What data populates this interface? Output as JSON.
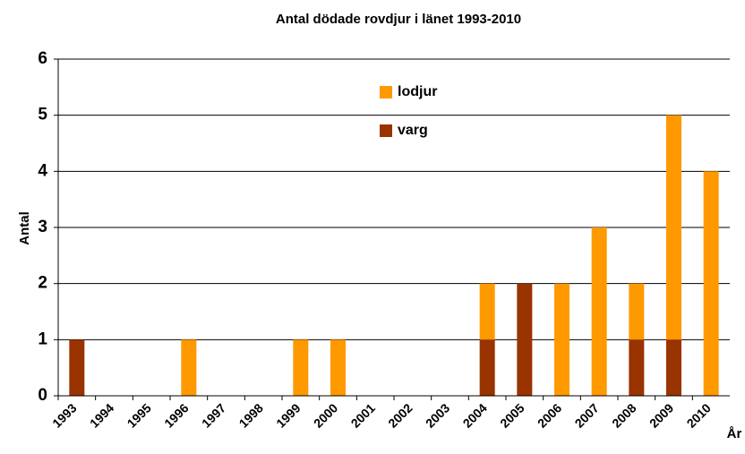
{
  "chart_data": {
    "type": "bar",
    "stacked": true,
    "title": "Antal dödade rovdjur i länet 1993-2010",
    "y_label": "Antal",
    "x_label": "År",
    "categories": [
      "1993",
      "1994",
      "1995",
      "1996",
      "1997",
      "1998",
      "1999",
      "2000",
      "2001",
      "2002",
      "2003",
      "2004",
      "2005",
      "2006",
      "2007",
      "2008",
      "2009",
      "2010"
    ],
    "series": [
      {
        "name": "varg",
        "color": "#993300",
        "values": [
          1,
          0,
          0,
          0,
          0,
          0,
          0,
          0,
          0,
          0,
          0,
          1,
          2,
          0,
          0,
          1,
          1,
          0
        ]
      },
      {
        "name": "lodjur",
        "color": "#ff9900",
        "values": [
          0,
          0,
          0,
          1,
          0,
          0,
          1,
          1,
          0,
          0,
          0,
          1,
          0,
          2,
          3,
          1,
          4,
          4
        ]
      }
    ],
    "ylim": [
      0,
      6
    ],
    "yticks": [
      0,
      1,
      2,
      3,
      4,
      5,
      6
    ],
    "grid": true
  }
}
